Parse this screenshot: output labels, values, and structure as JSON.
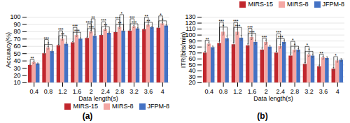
{
  "chart_data": [
    {
      "type": "bar",
      "caption": "(a)",
      "xlabel": "Data length(s)",
      "ylabel": "Accuracy(%)",
      "categories": [
        "0.4",
        "0.8",
        "1.2",
        "1.6",
        "2",
        "2.4",
        "2.8",
        "3.2",
        "3.6",
        "4"
      ],
      "series": [
        {
          "name": "MIRS-15",
          "color": "#c1272d",
          "values": [
            34,
            50,
            61,
            65,
            71,
            75,
            79,
            81,
            83,
            85
          ],
          "errors": [
            1.2,
            1.5,
            1.5,
            1.5,
            1.5,
            1.2,
            1.2,
            1.2,
            1.2,
            1.2
          ]
        },
        {
          "name": "MIRS-8",
          "color": "#f4a7a3",
          "values": [
            38,
            58,
            70,
            75,
            80,
            83,
            86,
            87,
            89,
            91
          ],
          "errors": [
            1.2,
            1.8,
            1.8,
            1.5,
            1.5,
            1.2,
            1.2,
            1.2,
            1.2,
            1.2
          ]
        },
        {
          "name": "JFPM-8",
          "color": "#4472c4",
          "values": [
            36,
            53,
            63,
            70,
            74,
            78,
            81,
            84,
            86,
            88
          ],
          "errors": [
            1.2,
            1.5,
            1.8,
            1.5,
            1.5,
            1.2,
            1.2,
            1.2,
            1.2,
            1.2
          ]
        }
      ],
      "ylim": [
        10,
        100
      ],
      "yticks": [
        10,
        20,
        30,
        40,
        50,
        60,
        70,
        80,
        90,
        100
      ],
      "grid": true,
      "legend": "lower right",
      "annotations": [
        {
          "category": "0.4",
          "between": [
            "MIRS-15",
            "MIRS-8"
          ],
          "text": "**"
        },
        {
          "category": "0.8",
          "between": [
            "MIRS-15",
            "MIRS-8"
          ],
          "text": "***"
        },
        {
          "category": "0.8",
          "between": [
            "MIRS-15",
            "JFPM-8"
          ],
          "text": "*"
        },
        {
          "category": "1.2",
          "between": [
            "MIRS-15",
            "MIRS-8"
          ],
          "text": "***"
        },
        {
          "category": "1.2",
          "between": [
            "MIRS-15",
            "JFPM-8"
          ],
          "text": "**"
        },
        {
          "category": "1.6",
          "between": [
            "MIRS-15",
            "MIRS-8"
          ],
          "text": "***"
        },
        {
          "category": "1.6",
          "between": [
            "MIRS-15",
            "JFPM-8"
          ],
          "text": "***"
        },
        {
          "category": "2",
          "between": [
            "MIRS-15",
            "MIRS-8"
          ],
          "text": "****"
        },
        {
          "category": "2",
          "between": [
            "MIRS-15",
            "JFPM-8"
          ],
          "text": "***"
        },
        {
          "category": "2",
          "between": [
            "MIRS-8",
            "JFPM-8"
          ],
          "text": "**"
        },
        {
          "category": "2.4",
          "between": [
            "MIRS-15",
            "MIRS-8"
          ],
          "text": "***"
        },
        {
          "category": "2.4",
          "between": [
            "MIRS-15",
            "JFPM-8"
          ],
          "text": "**"
        },
        {
          "category": "2.8",
          "between": [
            "MIRS-15",
            "MIRS-8"
          ],
          "text": "***"
        },
        {
          "category": "2.8",
          "between": [
            "MIRS-15",
            "JFPM-8"
          ],
          "text": "**"
        },
        {
          "category": "2.8",
          "between": [
            "MIRS-8",
            "JFPM-8"
          ],
          "text": "*"
        },
        {
          "category": "3.2",
          "between": [
            "MIRS-15",
            "MIRS-8"
          ],
          "text": "***"
        },
        {
          "category": "3.2",
          "between": [
            "MIRS-15",
            "JFPM-8"
          ],
          "text": "***"
        },
        {
          "category": "3.6",
          "between": [
            "MIRS-15",
            "MIRS-8"
          ],
          "text": "**"
        },
        {
          "category": "3.6",
          "between": [
            "MIRS-15",
            "JFPM-8"
          ],
          "text": "**"
        },
        {
          "category": "4",
          "between": [
            "MIRS-15",
            "MIRS-8"
          ],
          "text": "*"
        },
        {
          "category": "4",
          "between": [
            "MIRS-15",
            "JFPM-8"
          ],
          "text": "*"
        }
      ]
    },
    {
      "type": "bar",
      "caption": "(b)",
      "xlabel": "Data length(s)",
      "ylabel": "ITR(bits/min)",
      "categories": [
        "0.4",
        "0.8",
        "1.2",
        "1.6",
        "2",
        "2.4",
        "2.8",
        "3.2",
        "3.6",
        "4"
      ],
      "series": [
        {
          "name": "MIRS-15",
          "color": "#c1272d",
          "values": [
            70,
            86,
            84,
            82,
            75,
            70,
            65,
            51,
            47,
            43
          ],
          "errors": [
            2.5,
            3.5,
            3.5,
            3.0,
            3.0,
            2.5,
            2.5,
            2.5,
            2.5,
            2.5
          ]
        },
        {
          "name": "MIRS-8",
          "color": "#f4a7a3",
          "values": [
            85,
            105,
            105,
            96,
            88,
            81,
            75,
            67,
            62,
            57
          ],
          "errors": [
            3.0,
            5.0,
            4.5,
            3.5,
            3.5,
            3.0,
            3.0,
            2.5,
            2.5,
            2.5
          ]
        },
        {
          "name": "JFPM-8",
          "color": "#4472c4",
          "values": [
            79,
            94,
            95,
            88,
            80,
            88,
            75,
            65,
            61,
            58
          ],
          "errors": [
            2.5,
            4.0,
            4.0,
            3.5,
            3.0,
            2.5,
            2.5,
            2.5,
            2.5,
            2.5
          ]
        }
      ],
      "ylim": [
        20,
        130
      ],
      "yticks": [
        20,
        30,
        40,
        50,
        60,
        70,
        80,
        90,
        100,
        110,
        120,
        130
      ],
      "grid": true,
      "legend": "upper right",
      "annotations": [
        {
          "category": "0.4",
          "between": [
            "MIRS-15",
            "MIRS-8"
          ],
          "text": "**"
        },
        {
          "category": "0.8",
          "between": [
            "MIRS-15",
            "MIRS-8"
          ],
          "text": "***"
        },
        {
          "category": "0.8",
          "between": [
            "MIRS-15",
            "JFPM-8"
          ],
          "text": "*"
        },
        {
          "category": "1.2",
          "between": [
            "MIRS-15",
            "MIRS-8"
          ],
          "text": "***"
        },
        {
          "category": "1.2",
          "between": [
            "MIRS-15",
            "JFPM-8"
          ],
          "text": "***"
        },
        {
          "category": "1.6",
          "between": [
            "MIRS-15",
            "MIRS-8"
          ],
          "text": "***"
        },
        {
          "category": "1.6",
          "between": [
            "MIRS-15",
            "JFPM-8"
          ],
          "text": "***"
        },
        {
          "category": "2",
          "between": [
            "MIRS-15",
            "MIRS-8"
          ],
          "text": "***"
        },
        {
          "category": "2.4",
          "between": [
            "MIRS-15",
            "MIRS-8"
          ],
          "text": "***"
        },
        {
          "category": "2.4",
          "between": [
            "MIRS-15",
            "JFPM-8"
          ],
          "text": "***"
        },
        {
          "category": "2.8",
          "between": [
            "MIRS-15",
            "MIRS-8"
          ],
          "text": "*"
        },
        {
          "category": "2.8",
          "between": [
            "MIRS-15",
            "JFPM-8"
          ],
          "text": "*"
        },
        {
          "category": "3.2",
          "between": [
            "MIRS-15",
            "MIRS-8"
          ],
          "text": "*"
        },
        {
          "category": "3.2",
          "between": [
            "MIRS-15",
            "JFPM-8"
          ],
          "text": "*"
        },
        {
          "category": "3.6",
          "between": [
            "MIRS-15",
            "MIRS-8"
          ],
          "text": "**"
        },
        {
          "category": "4",
          "between": [
            "MIRS-15",
            "MIRS-8"
          ],
          "text": "*"
        }
      ]
    }
  ]
}
